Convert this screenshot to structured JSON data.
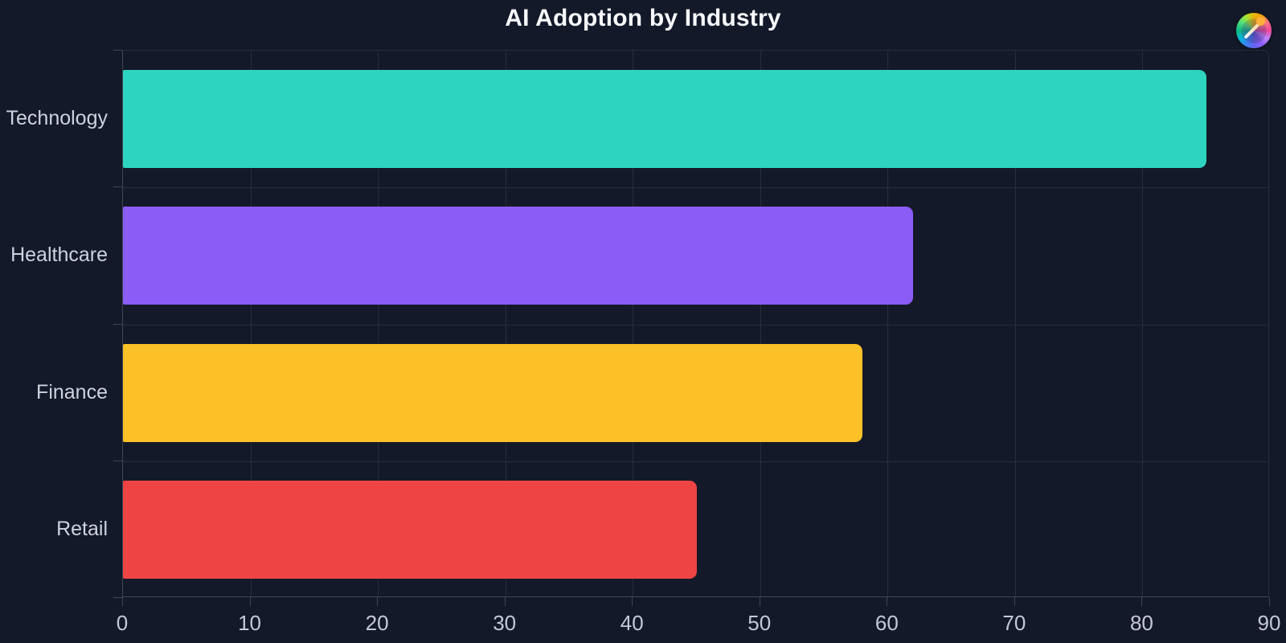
{
  "header": {
    "title": "AI Adoption by Industry",
    "logo_icon": "color-wheel-needle-logo"
  },
  "chart_data": {
    "type": "bar",
    "orientation": "horizontal",
    "title": "AI Adoption by Industry",
    "categories": [
      "Technology",
      "Healthcare",
      "Finance",
      "Retail"
    ],
    "values": [
      85,
      62,
      58,
      45
    ],
    "bar_colors": [
      "#2dd4bf",
      "#8b5cf6",
      "#fbc126",
      "#ef4444"
    ],
    "xlabel": "",
    "ylabel": "",
    "xlim": [
      0,
      90
    ],
    "xticks": [
      0,
      10,
      20,
      30,
      40,
      50,
      60,
      70,
      80,
      90
    ],
    "grid": "both",
    "legend": "none",
    "colors": {
      "background": "#131928",
      "grid_line": "#262d3b",
      "axis_line": "#3e4554",
      "tick_text": "#c3cad6",
      "category_text": "#ccd3de",
      "title_text": "#f7f9fc"
    }
  }
}
